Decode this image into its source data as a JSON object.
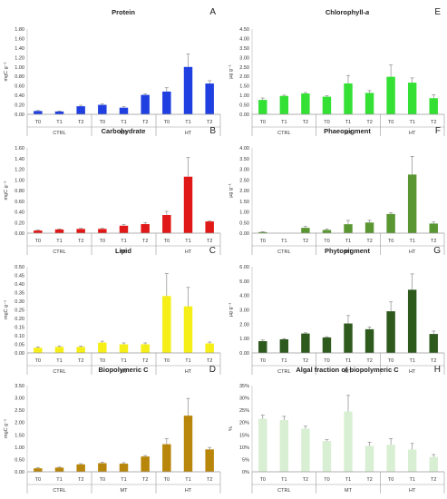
{
  "chart_data": [
    {
      "panel": "A",
      "title": "Protein",
      "type": "bar",
      "ylabel": "mgC g⁻¹",
      "ylim": [
        0,
        1.8
      ],
      "yticks": [
        "0.00",
        "0.20",
        "0.40",
        "0.60",
        "0.80",
        "1.00",
        "1.20",
        "1.40",
        "1.60",
        "1.80"
      ],
      "categories": [
        "T0",
        "T1",
        "T2",
        "T0",
        "T1",
        "T2",
        "T0",
        "T1",
        "T2"
      ],
      "groups": [
        "CTRL",
        "MT",
        "HT"
      ],
      "values": [
        0.07,
        0.06,
        0.17,
        0.2,
        0.14,
        0.41,
        0.48,
        1.0,
        0.65
      ],
      "errors": [
        0.01,
        0.01,
        0.02,
        0.02,
        0.02,
        0.02,
        0.08,
        0.27,
        0.06
      ],
      "color": "#1f3fe0"
    },
    {
      "panel": "B",
      "title": "Carbohydrate",
      "type": "bar",
      "ylabel": "mgC g⁻¹",
      "ylim": [
        0,
        1.6
      ],
      "yticks": [
        "0.00",
        "0.20",
        "0.40",
        "0.60",
        "0.80",
        "1.00",
        "1.20",
        "1.40",
        "1.60"
      ],
      "categories": [
        "T0",
        "T1",
        "T2",
        "T0",
        "T1",
        "T2",
        "T0",
        "T1",
        "T2"
      ],
      "groups": [
        "CTRL",
        "MT",
        "HT"
      ],
      "values": [
        0.05,
        0.07,
        0.08,
        0.08,
        0.14,
        0.17,
        0.34,
        1.06,
        0.22
      ],
      "errors": [
        0.01,
        0.01,
        0.01,
        0.01,
        0.02,
        0.03,
        0.07,
        0.36,
        0.01
      ],
      "color": "#e01818"
    },
    {
      "panel": "C",
      "title": "Lipid",
      "type": "bar",
      "ylabel": "mgC g⁻¹",
      "ylim": [
        0,
        0.5
      ],
      "yticks": [
        "0.00",
        "0.05",
        "0.10",
        "0.15",
        "0.20",
        "0.25",
        "0.30",
        "0.35",
        "0.40",
        "0.45",
        "0.50"
      ],
      "categories": [
        "T0",
        "T1",
        "T2",
        "T0",
        "T1",
        "T2",
        "T0",
        "T1",
        "T2"
      ],
      "groups": [
        "CTRL",
        "MT",
        "HT"
      ],
      "values": [
        0.03,
        0.035,
        0.035,
        0.06,
        0.05,
        0.05,
        0.33,
        0.27,
        0.055
      ],
      "errors": [
        0.005,
        0.005,
        0.005,
        0.008,
        0.008,
        0.008,
        0.13,
        0.11,
        0.008
      ],
      "color": "#f5ee17"
    },
    {
      "panel": "D",
      "title": "Biopolymeric C",
      "type": "bar",
      "ylabel": "mgC g⁻¹",
      "ylim": [
        0,
        3.5
      ],
      "yticks": [
        "0.00",
        "0.50",
        "1.00",
        "1.50",
        "2.00",
        "2.50",
        "3.00",
        "3.50"
      ],
      "categories": [
        "T0",
        "T1",
        "T2",
        "T0",
        "T1",
        "T2",
        "T0",
        "T1",
        "T2"
      ],
      "groups": [
        "CTRL",
        "MT",
        "HT"
      ],
      "values": [
        0.14,
        0.17,
        0.3,
        0.35,
        0.33,
        0.62,
        1.12,
        2.28,
        0.91
      ],
      "errors": [
        0.02,
        0.02,
        0.03,
        0.04,
        0.04,
        0.04,
        0.22,
        0.7,
        0.08
      ],
      "color": "#b8860b"
    },
    {
      "panel": "E",
      "title": "Chlorophyll-a",
      "type": "bar",
      "ylabel": "µg g⁻¹",
      "ylim": [
        0,
        4.5
      ],
      "yticks": [
        "0.00",
        "0.50",
        "1.00",
        "1.50",
        "2.00",
        "2.50",
        "3.00",
        "3.50",
        "4.00",
        "4.50"
      ],
      "categories": [
        "T0",
        "T1",
        "T2",
        "T0",
        "T1",
        "T2",
        "T0",
        "T1",
        "T2"
      ],
      "groups": [
        "CTRL",
        "MT",
        "HT"
      ],
      "values": [
        0.76,
        0.97,
        1.1,
        0.93,
        1.63,
        1.13,
        1.98,
        1.67,
        0.85
      ],
      "errors": [
        0.1,
        0.04,
        0.05,
        0.05,
        0.42,
        0.12,
        0.62,
        0.25,
        0.18
      ],
      "color": "#33e033"
    },
    {
      "panel": "F",
      "title": "Phaeopigment",
      "type": "bar",
      "ylabel": "µg g⁻¹",
      "ylim": [
        0,
        4.0
      ],
      "yticks": [
        "0.00",
        "0.50",
        "1.00",
        "1.50",
        "2.00",
        "2.50",
        "3.00",
        "3.50",
        "4.00"
      ],
      "categories": [
        "T0",
        "T1",
        "T2",
        "T0",
        "T1",
        "T2",
        "T0",
        "T1",
        "T2"
      ],
      "groups": [
        "CTRL",
        "MT",
        "HT"
      ],
      "values": [
        0.05,
        0.0,
        0.25,
        0.15,
        0.42,
        0.5,
        0.9,
        2.75,
        0.45
      ],
      "errors": [
        0.02,
        0.0,
        0.06,
        0.05,
        0.18,
        0.1,
        0.06,
        0.85,
        0.07
      ],
      "color": "#5a9632"
    },
    {
      "panel": "G",
      "title": "Phytopigment",
      "type": "bar",
      "ylabel": "µg g⁻¹",
      "ylim": [
        0,
        6.0
      ],
      "yticks": [
        "0.00",
        "1.00",
        "2.00",
        "3.00",
        "4.00",
        "5.00",
        "6.00"
      ],
      "categories": [
        "T0",
        "T1",
        "T2",
        "T0",
        "T1",
        "T2",
        "T0",
        "T1",
        "T2"
      ],
      "groups": [
        "CTRL",
        "MT",
        "HT"
      ],
      "values": [
        0.82,
        0.95,
        1.35,
        1.08,
        2.05,
        1.65,
        2.9,
        4.4,
        1.32
      ],
      "errors": [
        0.08,
        0.05,
        0.05,
        0.05,
        0.55,
        0.15,
        0.65,
        1.1,
        0.2
      ],
      "color": "#2e5a1e"
    },
    {
      "panel": "H",
      "title": "Algal fraction of biopolymeric C",
      "type": "bar",
      "ylabel": "%",
      "ylim": [
        0,
        35
      ],
      "yticks": [
        "0%",
        "5%",
        "10%",
        "15%",
        "20%",
        "25%",
        "30%",
        "35%"
      ],
      "categories": [
        "T0",
        "T1",
        "T2",
        "T0",
        "T1",
        "T2",
        "T0",
        "T1",
        "T2"
      ],
      "groups": [
        "CTRL",
        "MT",
        "HT"
      ],
      "values": [
        21.5,
        21.0,
        17.5,
        12.5,
        24.5,
        10.5,
        11.0,
        9.0,
        6.0
      ],
      "errors": [
        1.5,
        1.5,
        1.0,
        0.5,
        6.5,
        1.5,
        2.5,
        2.5,
        1.0
      ],
      "color": "#d9efd3"
    }
  ]
}
